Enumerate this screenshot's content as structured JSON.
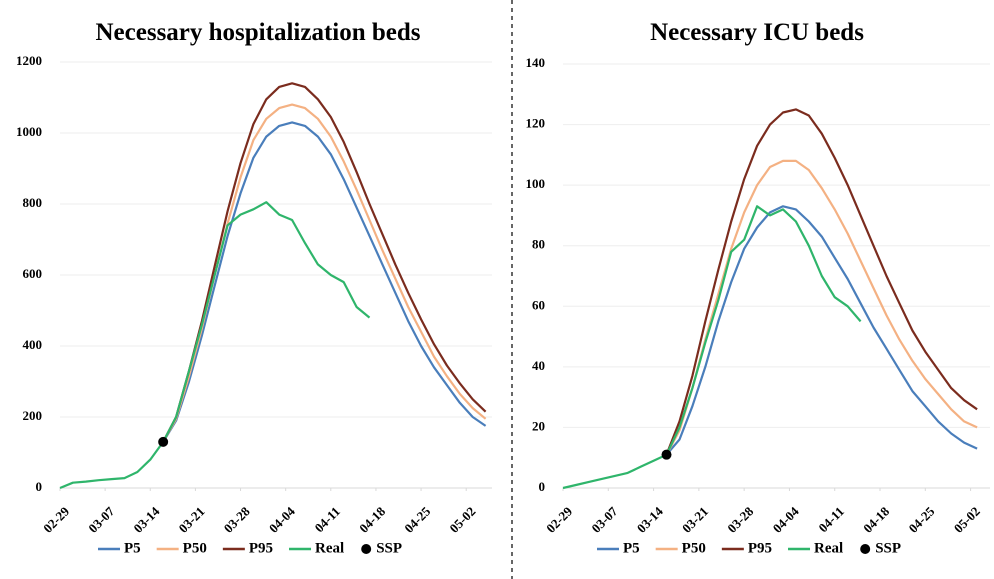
{
  "chart_data": [
    {
      "type": "line",
      "title": "Necessary hospitalization beds",
      "x": [
        0,
        2,
        4,
        6,
        8,
        10,
        12,
        14,
        16,
        18,
        20,
        22,
        24,
        26,
        28,
        30,
        32,
        34,
        36,
        38,
        40,
        42,
        44,
        46,
        48,
        50,
        52,
        54,
        56,
        58,
        60,
        62,
        64,
        66
      ],
      "xlim": [
        0,
        67
      ],
      "xticks": [
        {
          "value": 0,
          "label": "02-29"
        },
        {
          "value": 7,
          "label": "03-07"
        },
        {
          "value": 14,
          "label": "03-14"
        },
        {
          "value": 21,
          "label": "03-21"
        },
        {
          "value": 28,
          "label": "03-28"
        },
        {
          "value": 35,
          "label": "04-04"
        },
        {
          "value": 42,
          "label": "04-11"
        },
        {
          "value": 49,
          "label": "04-18"
        },
        {
          "value": 56,
          "label": "04-25"
        },
        {
          "value": 63,
          "label": "05-02"
        }
      ],
      "ylim": [
        0,
        1200
      ],
      "yticks": [
        0,
        200,
        400,
        600,
        800,
        1000,
        1200
      ],
      "grid": true,
      "series": [
        {
          "name": "P5",
          "color": "#4a7ebb",
          "values": [
            null,
            null,
            null,
            null,
            null,
            null,
            null,
            null,
            130,
            190,
            300,
            430,
            570,
            710,
            830,
            930,
            990,
            1020,
            1030,
            1020,
            990,
            940,
            870,
            790,
            710,
            630,
            550,
            470,
            400,
            340,
            290,
            240,
            200,
            175
          ]
        },
        {
          "name": "P50",
          "color": "#f4b183",
          "values": [
            null,
            null,
            null,
            null,
            null,
            null,
            null,
            null,
            130,
            195,
            315,
            450,
            600,
            745,
            875,
            980,
            1040,
            1070,
            1080,
            1070,
            1040,
            990,
            920,
            840,
            755,
            670,
            590,
            510,
            440,
            370,
            315,
            265,
            225,
            195
          ]
        },
        {
          "name": "P95",
          "color": "#7b2c1e",
          "values": [
            null,
            null,
            null,
            null,
            null,
            null,
            null,
            null,
            130,
            200,
            330,
            470,
            625,
            780,
            915,
            1025,
            1095,
            1130,
            1140,
            1130,
            1095,
            1045,
            975,
            890,
            800,
            715,
            630,
            550,
            475,
            405,
            345,
            295,
            250,
            215
          ]
        },
        {
          "name": "Real",
          "color": "#2fb56b",
          "values": [
            0,
            15,
            18,
            22,
            25,
            28,
            45,
            80,
            130,
            200,
            330,
            460,
            600,
            740,
            770,
            785,
            805,
            770,
            755,
            690,
            630,
            600,
            580,
            510,
            480,
            null,
            null,
            null,
            null,
            null,
            null,
            null,
            null,
            null
          ]
        }
      ],
      "ssp": {
        "name": "SSP",
        "x": 16,
        "y": 130,
        "color": "#000000"
      }
    },
    {
      "type": "line",
      "title": "Necessary ICU beds",
      "x": [
        0,
        2,
        4,
        6,
        8,
        10,
        12,
        14,
        16,
        18,
        20,
        22,
        24,
        26,
        28,
        30,
        32,
        34,
        36,
        38,
        40,
        42,
        44,
        46,
        48,
        50,
        52,
        54,
        56,
        58,
        60,
        62,
        64
      ],
      "xlim": [
        0,
        66
      ],
      "xticks": [
        {
          "value": 0,
          "label": "02-29"
        },
        {
          "value": 7,
          "label": "03-07"
        },
        {
          "value": 14,
          "label": "03-14"
        },
        {
          "value": 21,
          "label": "03-21"
        },
        {
          "value": 28,
          "label": "03-28"
        },
        {
          "value": 35,
          "label": "04-04"
        },
        {
          "value": 42,
          "label": "04-11"
        },
        {
          "value": 49,
          "label": "04-18"
        },
        {
          "value": 56,
          "label": "04-25"
        },
        {
          "value": 63,
          "label": "05-02"
        }
      ],
      "ylim": [
        0,
        140
      ],
      "yticks": [
        0,
        20,
        40,
        60,
        80,
        100,
        120,
        140
      ],
      "grid": true,
      "series": [
        {
          "name": "P5",
          "color": "#4a7ebb",
          "values": [
            null,
            null,
            null,
            null,
            null,
            null,
            null,
            null,
            11,
            16,
            27,
            40,
            55,
            68,
            79,
            86,
            91,
            93,
            92,
            88,
            83,
            76,
            69,
            61,
            53,
            46,
            39,
            32,
            27,
            22,
            18,
            15,
            13
          ]
        },
        {
          "name": "P50",
          "color": "#f4b183",
          "values": [
            null,
            null,
            null,
            null,
            null,
            null,
            null,
            null,
            11,
            19,
            33,
            49,
            64,
            79,
            91,
            100,
            106,
            108,
            108,
            105,
            99,
            92,
            84,
            75,
            66,
            57,
            49,
            42,
            36,
            31,
            26,
            22,
            20
          ]
        },
        {
          "name": "P95",
          "color": "#7b2c1e",
          "values": [
            null,
            null,
            null,
            null,
            null,
            null,
            null,
            null,
            11,
            22,
            37,
            55,
            72,
            88,
            102,
            113,
            120,
            124,
            125,
            123,
            117,
            109,
            100,
            90,
            80,
            70,
            61,
            52,
            45,
            39,
            33,
            29,
            26
          ]
        },
        {
          "name": "Real",
          "color": "#2fb56b",
          "values": [
            0,
            1,
            2,
            3,
            4,
            5,
            7,
            9,
            11,
            20,
            33,
            48,
            62,
            78,
            82,
            93,
            90,
            92,
            88,
            80,
            70,
            63,
            60,
            55,
            null,
            null,
            null,
            null,
            null,
            null,
            null,
            null,
            null
          ]
        }
      ],
      "ssp": {
        "name": "SSP",
        "x": 16,
        "y": 11,
        "color": "#000000"
      }
    }
  ]
}
